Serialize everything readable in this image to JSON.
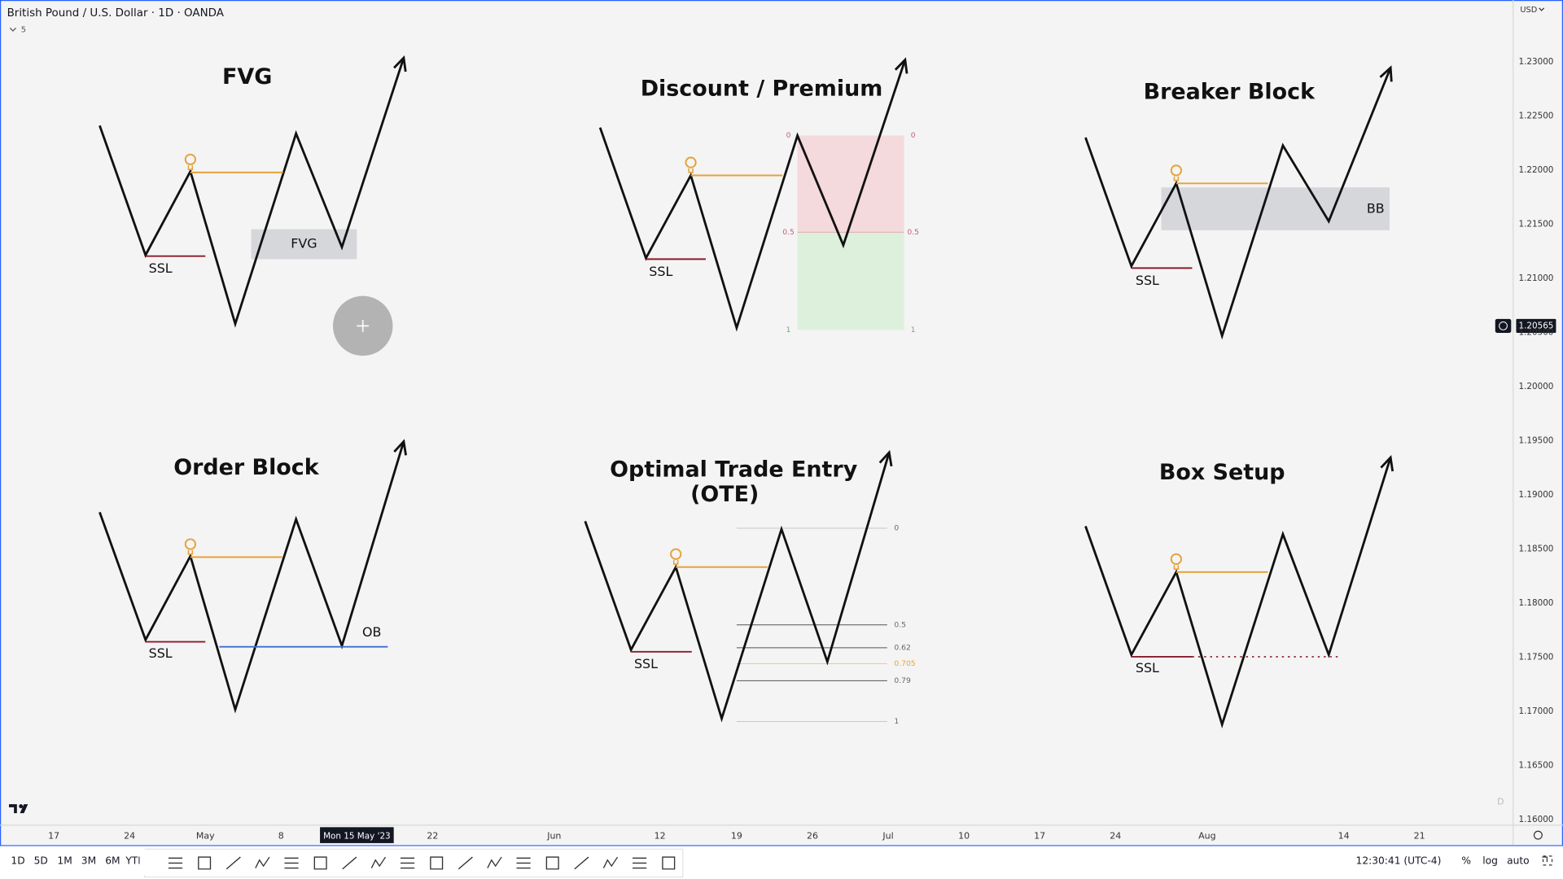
{
  "header": {
    "symbol": "British Pound / U.S. Dollar · 1D · OANDA",
    "indicator_count": "5",
    "currency": "USD"
  },
  "price_axis": {
    "labels": [
      "1.23000",
      "1.22500",
      "1.22000",
      "1.21500",
      "1.21000",
      "1.20500",
      "1.20000",
      "1.19500",
      "1.19000",
      "1.18500",
      "1.18000",
      "1.17500",
      "1.17000",
      "1.16500",
      "1.16000"
    ],
    "current_price": "1.20565"
  },
  "time_axis": {
    "labels": [
      "17",
      "24",
      "May",
      "8",
      "22",
      "Jun",
      "12",
      "19",
      "26",
      "Jul",
      "10",
      "17",
      "24",
      "Aug",
      "14",
      "21"
    ],
    "crosshair_label": "Mon 15 May '23"
  },
  "corner_mark": "D",
  "diagrams": [
    {
      "title": [
        "FVG"
      ],
      "labels": [
        "SSL",
        "FVG"
      ]
    },
    {
      "title": [
        "Discount / Premium"
      ],
      "labels": [
        "SSL"
      ],
      "fib_levels": [
        "0",
        "0.5",
        "1"
      ]
    },
    {
      "title": [
        "Breaker Block"
      ],
      "labels": [
        "SSL",
        "BB"
      ]
    },
    {
      "title": [
        "Order Block"
      ],
      "labels": [
        "SSL",
        "OB"
      ]
    },
    {
      "title": [
        "Optimal Trade Entry",
        "(OTE)"
      ],
      "labels": [
        "SSL"
      ],
      "fib_levels": [
        "0",
        "0.5",
        "0.62",
        "0.705",
        "0.79",
        "1"
      ]
    },
    {
      "title": [
        "Box Setup"
      ],
      "labels": [
        "SSL"
      ]
    }
  ],
  "toolbar": {
    "intervals": [
      "1D",
      "5D",
      "1M",
      "3M",
      "6M",
      "YTD"
    ],
    "clock": "12:30:41 (UTC-4)",
    "scale_options": [
      "%",
      "log",
      "auto"
    ]
  }
}
